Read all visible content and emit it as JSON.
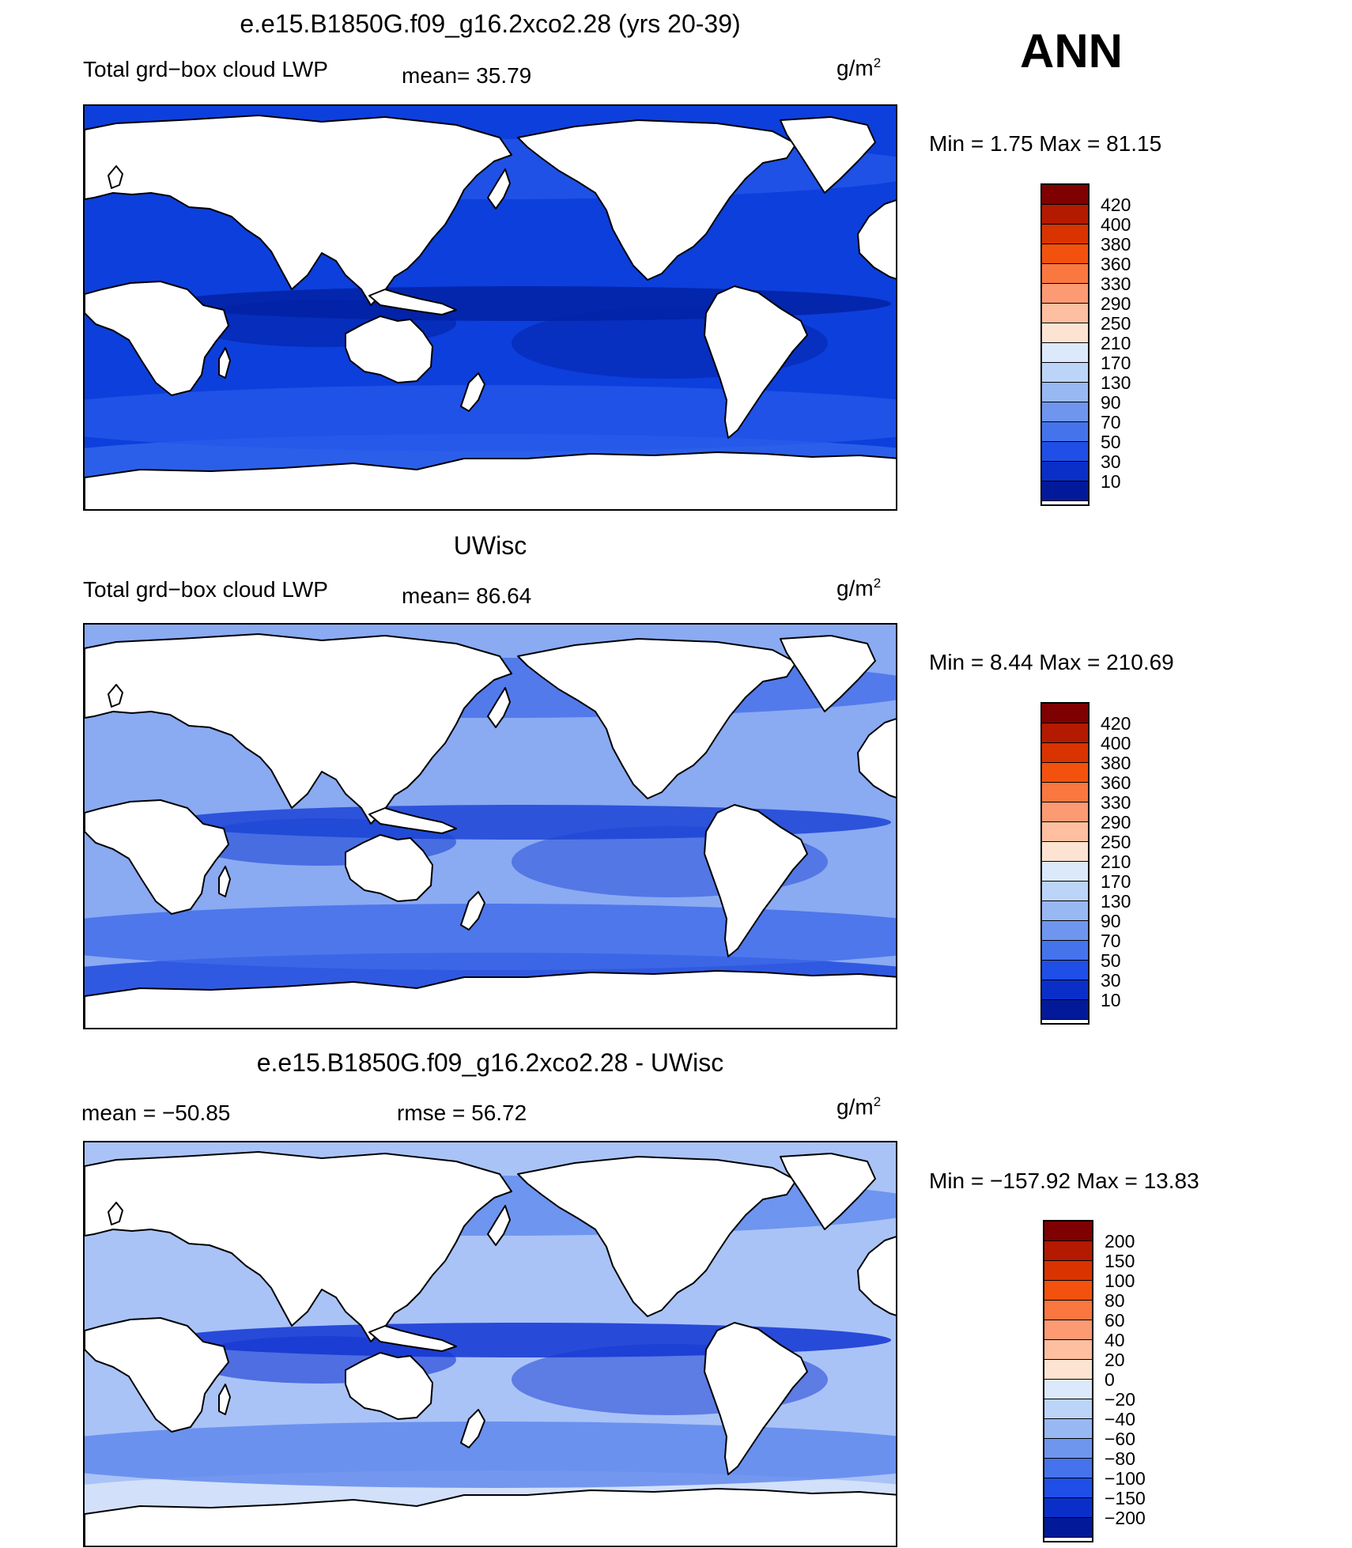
{
  "season": "ANN",
  "panels": [
    {
      "title": "e.e15.B1850G.f09_g16.2xco2.28 (yrs 20-39)",
      "variable": "Total grd−box cloud LWP",
      "stat1": "mean=   35.79",
      "stat2": "",
      "unit_base": "g/m",
      "unit_exp": "2",
      "minmax": "Min =    1.75 Max =   81.15",
      "colorbar": {
        "labels": [
          "420",
          "400",
          "380",
          "360",
          "330",
          "290",
          "250",
          "210",
          "170",
          "130",
          "90",
          "70",
          "50",
          "30",
          "10"
        ],
        "colors": [
          "#7f0000",
          "#b31a00",
          "#d93300",
          "#f2520d",
          "#fa7740",
          "#fc9a73",
          "#fdbfa0",
          "#fde4d2",
          "#dbe9fb",
          "#bcd4f8",
          "#98b8f4",
          "#6f96ee",
          "#4573eb",
          "#1f4fe6",
          "#0a2fc9",
          "#021a99"
        ]
      },
      "field": {
        "ocean_base": "#0d3fdc",
        "tropics": "#0222a5",
        "storm_track": "#2558ea",
        "polar_band": "#2f63ea",
        "land": "#ffffff"
      }
    },
    {
      "title": "UWisc",
      "variable": "Total grd−box cloud LWP",
      "stat1": "mean=   86.64",
      "stat2": "",
      "unit_base": "g/m",
      "unit_exp": "2",
      "minmax": "Min =    8.44 Max =  210.69",
      "colorbar": {
        "labels": [
          "420",
          "400",
          "380",
          "360",
          "330",
          "290",
          "250",
          "210",
          "170",
          "130",
          "90",
          "70",
          "50",
          "30",
          "10"
        ],
        "colors": [
          "#7f0000",
          "#b31a00",
          "#d93300",
          "#f2520d",
          "#fa7740",
          "#fc9a73",
          "#fdbfa0",
          "#fde4d2",
          "#dbe9fb",
          "#bcd4f8",
          "#98b8f4",
          "#6f96ee",
          "#4573eb",
          "#1f4fe6",
          "#0a2fc9",
          "#021a99"
        ]
      },
      "field": {
        "ocean_base": "#8aaaf2",
        "tropics": "#1b44d6",
        "storm_track": "#3f6ae8",
        "polar_band": "#2650e0",
        "land": "#ffffff"
      }
    },
    {
      "title": "e.e15.B1850G.f09_g16.2xco2.28 - UWisc",
      "variable": "",
      "stat1": "mean = −50.85",
      "stat2": "rmse =   56.72",
      "unit_base": "g/m",
      "unit_exp": "2",
      "minmax": "Min = −157.92 Max =   13.83",
      "colorbar": {
        "labels": [
          "200",
          "150",
          "100",
          "80",
          "60",
          "40",
          "20",
          "0",
          "−20",
          "−40",
          "−60",
          "−80",
          "−100",
          "−150",
          "−200"
        ],
        "colors": [
          "#7f0000",
          "#b31a00",
          "#d93300",
          "#f2520d",
          "#fa7740",
          "#fc9a73",
          "#fdbfa0",
          "#fde4d2",
          "#dbe9fb",
          "#bcd4f8",
          "#98b8f4",
          "#6f96ee",
          "#4573eb",
          "#1f4fe6",
          "#0a2fc9",
          "#021a99"
        ]
      },
      "field": {
        "ocean_base": "#a9c3f7",
        "tropics": "#1235d2",
        "storm_track": "#5b85ec",
        "polar_band": "#d6e3fa",
        "land": "#ffffff"
      }
    }
  ]
}
